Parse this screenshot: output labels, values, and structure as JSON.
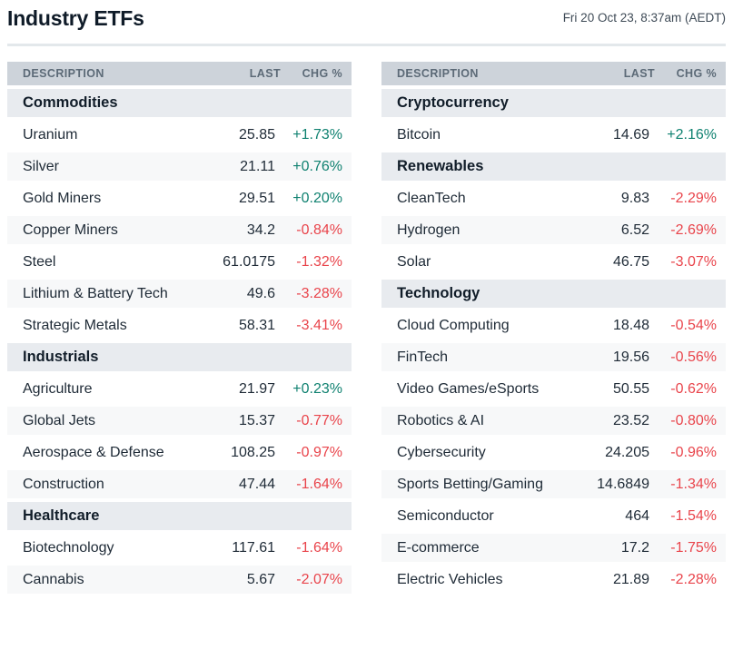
{
  "header": {
    "title": "Industry ETFs",
    "timestamp": "Fri 20 Oct 23, 8:37am (AEDT)"
  },
  "columns": {
    "description": "DESCRIPTION",
    "last": "LAST",
    "chg": "CHG %"
  },
  "colors": {
    "positive": "#0f8170",
    "negative": "#e9444b",
    "header_bg": "#cdd3da",
    "header_text": "#5c6a77",
    "section_bg": "#e8ebef",
    "alt_row_bg": "#f7f8f9"
  },
  "tables": [
    {
      "rows": [
        {
          "type": "section",
          "label": "Commodities"
        },
        {
          "type": "data",
          "label": "Uranium",
          "last": "25.85",
          "chg": "+1.73%",
          "dir": "up"
        },
        {
          "type": "data",
          "label": "Silver",
          "last": "21.11",
          "chg": "+0.76%",
          "dir": "up"
        },
        {
          "type": "data",
          "label": "Gold Miners",
          "last": "29.51",
          "chg": "+0.20%",
          "dir": "up"
        },
        {
          "type": "data",
          "label": "Copper Miners",
          "last": "34.2",
          "chg": "-0.84%",
          "dir": "down"
        },
        {
          "type": "data",
          "label": "Steel",
          "last": "61.0175",
          "chg": "-1.32%",
          "dir": "down"
        },
        {
          "type": "data",
          "label": "Lithium & Battery Tech",
          "last": "49.6",
          "chg": "-3.28%",
          "dir": "down"
        },
        {
          "type": "data",
          "label": "Strategic Metals",
          "last": "58.31",
          "chg": "-3.41%",
          "dir": "down"
        },
        {
          "type": "section",
          "label": "Industrials"
        },
        {
          "type": "data",
          "label": "Agriculture",
          "last": "21.97",
          "chg": "+0.23%",
          "dir": "up"
        },
        {
          "type": "data",
          "label": "Global Jets",
          "last": "15.37",
          "chg": "-0.77%",
          "dir": "down"
        },
        {
          "type": "data",
          "label": "Aerospace & Defense",
          "last": "108.25",
          "chg": "-0.97%",
          "dir": "down"
        },
        {
          "type": "data",
          "label": "Construction",
          "last": "47.44",
          "chg": "-1.64%",
          "dir": "down"
        },
        {
          "type": "section",
          "label": "Healthcare"
        },
        {
          "type": "data",
          "label": "Biotechnology",
          "last": "117.61",
          "chg": "-1.64%",
          "dir": "down"
        },
        {
          "type": "data",
          "label": "Cannabis",
          "last": "5.67",
          "chg": "-2.07%",
          "dir": "down"
        }
      ]
    },
    {
      "rows": [
        {
          "type": "section",
          "label": "Cryptocurrency"
        },
        {
          "type": "data",
          "label": "Bitcoin",
          "last": "14.69",
          "chg": "+2.16%",
          "dir": "up"
        },
        {
          "type": "section",
          "label": "Renewables"
        },
        {
          "type": "data",
          "label": "CleanTech",
          "last": "9.83",
          "chg": "-2.29%",
          "dir": "down"
        },
        {
          "type": "data",
          "label": "Hydrogen",
          "last": "6.52",
          "chg": "-2.69%",
          "dir": "down"
        },
        {
          "type": "data",
          "label": "Solar",
          "last": "46.75",
          "chg": "-3.07%",
          "dir": "down"
        },
        {
          "type": "section",
          "label": "Technology"
        },
        {
          "type": "data",
          "label": "Cloud Computing",
          "last": "18.48",
          "chg": "-0.54%",
          "dir": "down"
        },
        {
          "type": "data",
          "label": "FinTech",
          "last": "19.56",
          "chg": "-0.56%",
          "dir": "down"
        },
        {
          "type": "data",
          "label": "Video Games/eSports",
          "last": "50.55",
          "chg": "-0.62%",
          "dir": "down"
        },
        {
          "type": "data",
          "label": "Robotics & AI",
          "last": "23.52",
          "chg": "-0.80%",
          "dir": "down"
        },
        {
          "type": "data",
          "label": "Cybersecurity",
          "last": "24.205",
          "chg": "-0.96%",
          "dir": "down"
        },
        {
          "type": "data",
          "label": "Sports Betting/Gaming",
          "last": "14.6849",
          "chg": "-1.34%",
          "dir": "down"
        },
        {
          "type": "data",
          "label": "Semiconductor",
          "last": "464",
          "chg": "-1.54%",
          "dir": "down"
        },
        {
          "type": "data",
          "label": "E-commerce",
          "last": "17.2",
          "chg": "-1.75%",
          "dir": "down"
        },
        {
          "type": "data",
          "label": "Electric Vehicles",
          "last": "21.89",
          "chg": "-2.28%",
          "dir": "down"
        }
      ]
    }
  ]
}
